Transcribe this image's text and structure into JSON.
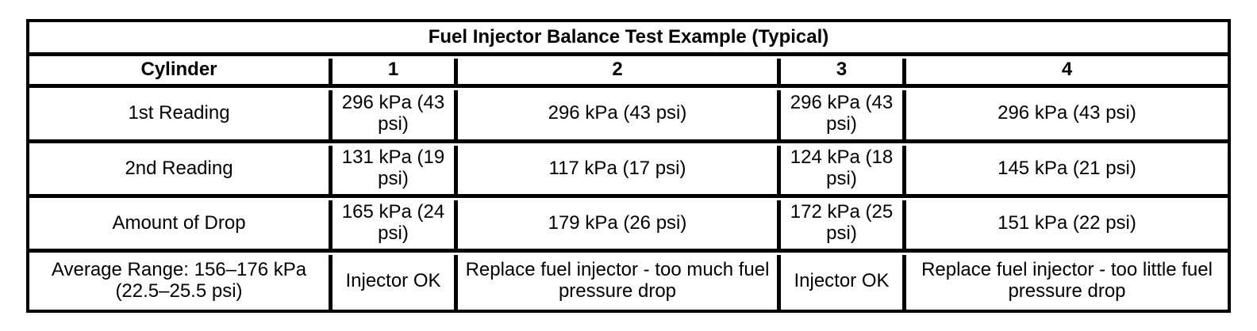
{
  "chart_data": {
    "type": "table",
    "title": "Fuel Injector Balance Test Example (Typical)",
    "columns": [
      "Cylinder",
      "1",
      "2",
      "3",
      "4"
    ],
    "rows": [
      [
        "1st Reading",
        "296 kPa (43 psi)",
        "296 kPa (43 psi)",
        "296 kPa (43 psi)",
        "296 kPa (43 psi)"
      ],
      [
        "2nd Reading",
        "131 kPa (19 psi)",
        "117 kPa (17 psi)",
        "124 kPa (18 psi)",
        "145 kPa (21 psi)"
      ],
      [
        "Amount of Drop",
        "165 kPa (24 psi)",
        "179 kPa (26 psi)",
        "172 kPa (25 psi)",
        "151 kPa (22 psi)"
      ],
      [
        "Average Range: 156–176 kPa (22.5–25.5 psi)",
        "Injector OK",
        "Replace fuel injector - too much fuel pressure drop",
        "Injector OK",
        "Replace fuel injector - too little fuel pressure drop"
      ]
    ],
    "layout": {
      "border_style": "thick black grid, white cell background",
      "title_row": "spans all columns, bold, centered",
      "header_row_bold": true
    }
  },
  "colors": {
    "border": "#000000",
    "background": "#ffffff",
    "text": "#000000"
  }
}
